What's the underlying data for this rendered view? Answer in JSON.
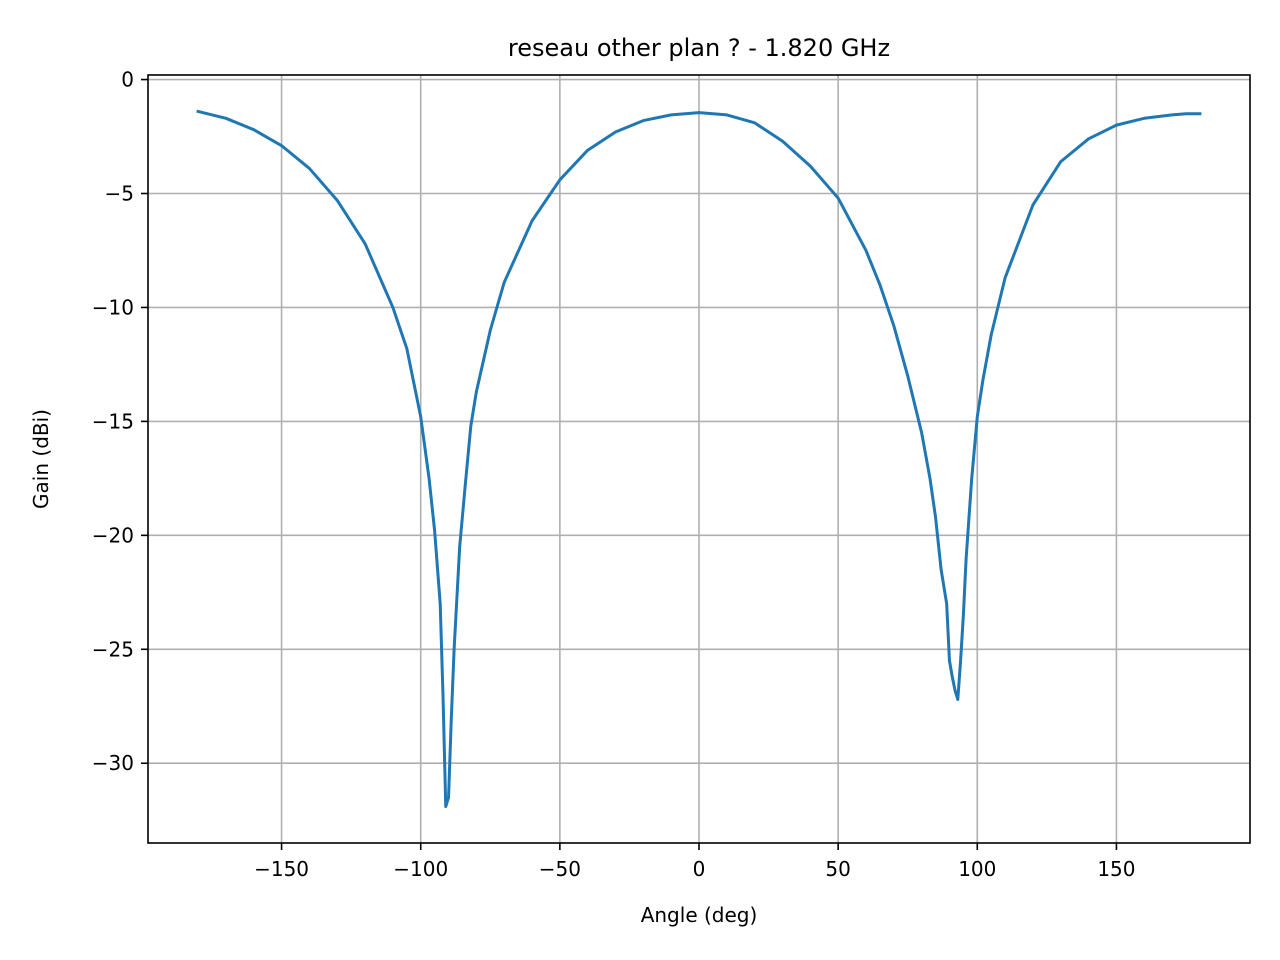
{
  "chart_data": {
    "type": "line",
    "title": "reseau other plan ? - 1.820 GHz",
    "xlabel": "Angle (deg)",
    "ylabel": "Gain (dBi)",
    "xlim": [
      -198,
      198
    ],
    "ylim": [
      -33.5,
      0.2
    ],
    "xticks": [
      -150,
      -100,
      -50,
      0,
      50,
      100,
      150
    ],
    "yticks": [
      0,
      -5,
      -10,
      -15,
      -20,
      -25,
      -30
    ],
    "xtick_labels": [
      "−150",
      "−100",
      "−50",
      "0",
      "50",
      "100",
      "150"
    ],
    "ytick_labels": [
      "0",
      "−5",
      "−10",
      "−15",
      "−20",
      "−25",
      "−30"
    ],
    "grid": true,
    "series": [
      {
        "color": "#1f77b4",
        "x": [
          -180,
          -170,
          -160,
          -150,
          -140,
          -130,
          -120,
          -110,
          -105,
          -100,
          -97,
          -95,
          -93,
          -92,
          -91,
          -90,
          -89,
          -88,
          -86,
          -84,
          -82,
          -80,
          -75,
          -70,
          -60,
          -50,
          -40,
          -30,
          -20,
          -10,
          0,
          10,
          20,
          30,
          40,
          50,
          60,
          65,
          70,
          75,
          80,
          83,
          85,
          87,
          89,
          90,
          91,
          92,
          93,
          94,
          95,
          96,
          98,
          100,
          102,
          105,
          110,
          120,
          130,
          140,
          150,
          160,
          170,
          175,
          180
        ],
        "y": [
          -1.4,
          -1.7,
          -2.2,
          -2.9,
          -3.9,
          -5.3,
          -7.2,
          -10.0,
          -11.8,
          -14.8,
          -17.5,
          -19.8,
          -23.0,
          -27.0,
          -31.9,
          -31.5,
          -28.0,
          -25.0,
          -20.5,
          -17.8,
          -15.2,
          -13.7,
          -11.0,
          -8.9,
          -6.2,
          -4.4,
          -3.1,
          -2.3,
          -1.8,
          -1.55,
          -1.45,
          -1.55,
          -1.9,
          -2.7,
          -3.8,
          -5.2,
          -7.5,
          -9.0,
          -10.8,
          -13.0,
          -15.5,
          -17.5,
          -19.2,
          -21.5,
          -23.0,
          -25.5,
          -26.2,
          -26.8,
          -27.2,
          -25.5,
          -23.5,
          -21.0,
          -17.5,
          -14.8,
          -13.2,
          -11.2,
          -8.7,
          -5.5,
          -3.6,
          -2.6,
          -2.0,
          -1.7,
          -1.55,
          -1.5,
          -1.5
        ]
      }
    ]
  }
}
